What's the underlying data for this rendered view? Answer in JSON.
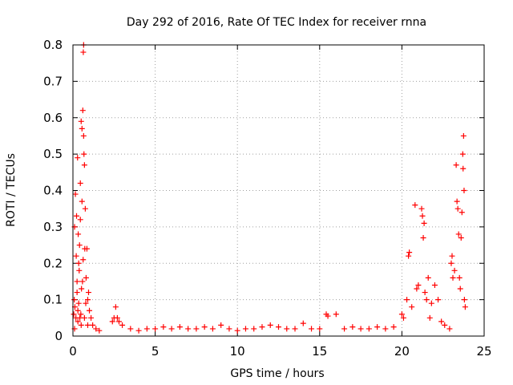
{
  "chart_data": {
    "type": "scatter",
    "title": "Day 292 of 2016, Rate Of TEC Index for receiver rnna",
    "xlabel": "GPS time / hours",
    "ylabel": "ROTI / TECUs",
    "xlim": [
      0,
      25
    ],
    "ylim": [
      0,
      0.8
    ],
    "xticks": [
      0,
      5,
      10,
      15,
      20,
      25
    ],
    "yticks": [
      0,
      0.1,
      0.2,
      0.3,
      0.4,
      0.5,
      0.6,
      0.7,
      0.8
    ],
    "grid": true,
    "marker": "+",
    "color": "#ff0000",
    "series": [
      {
        "points": [
          [
            0.05,
            0.06
          ],
          [
            0.08,
            0.1
          ],
          [
            0.1,
            0.3
          ],
          [
            0.12,
            0.08
          ],
          [
            0.15,
            0.39
          ],
          [
            0.18,
            0.05
          ],
          [
            0.2,
            0.22
          ],
          [
            0.22,
            0.33
          ],
          [
            0.25,
            0.12
          ],
          [
            0.28,
            0.49
          ],
          [
            0.3,
            0.07
          ],
          [
            0.32,
            0.28
          ],
          [
            0.35,
            0.09
          ],
          [
            0.38,
            0.18
          ],
          [
            0.4,
            0.25
          ],
          [
            0.42,
            0.05
          ],
          [
            0.45,
            0.32
          ],
          [
            0.48,
            0.06
          ],
          [
            0.5,
            0.59
          ],
          [
            0.52,
            0.13
          ],
          [
            0.55,
            0.57
          ],
          [
            0.58,
            0.15
          ],
          [
            0.6,
            0.62
          ],
          [
            0.62,
            0.21
          ],
          [
            0.63,
            0.78
          ],
          [
            0.65,
            0.8
          ],
          [
            0.67,
            0.5
          ],
          [
            0.7,
            0.47
          ],
          [
            0.72,
            0.24
          ],
          [
            0.75,
            0.35
          ],
          [
            0.78,
            0.09
          ],
          [
            0.8,
            0.16
          ],
          [
            0.85,
            0.24
          ],
          [
            0.9,
            0.1
          ],
          [
            0.95,
            0.12
          ],
          [
            1.0,
            0.07
          ],
          [
            1.1,
            0.05
          ],
          [
            1.2,
            0.03
          ],
          [
            1.4,
            0.02
          ],
          [
            1.6,
            0.015
          ],
          [
            0.1,
            0.02
          ],
          [
            0.3,
            0.04
          ],
          [
            0.5,
            0.03
          ],
          [
            0.7,
            0.05
          ],
          [
            0.9,
            0.03
          ],
          [
            0.45,
            0.42
          ],
          [
            0.55,
            0.37
          ],
          [
            0.65,
            0.55
          ],
          [
            0.35,
            0.2
          ],
          [
            0.25,
            0.15
          ],
          [
            2.4,
            0.04
          ],
          [
            2.5,
            0.05
          ],
          [
            2.6,
            0.08
          ],
          [
            2.7,
            0.05
          ],
          [
            2.8,
            0.04
          ],
          [
            3.0,
            0.03
          ],
          [
            3.5,
            0.02
          ],
          [
            4.0,
            0.015
          ],
          [
            4.5,
            0.02
          ],
          [
            5.0,
            0.02
          ],
          [
            5.5,
            0.025
          ],
          [
            6.0,
            0.02
          ],
          [
            6.5,
            0.025
          ],
          [
            7.0,
            0.02
          ],
          [
            7.5,
            0.02
          ],
          [
            8.0,
            0.025
          ],
          [
            8.5,
            0.02
          ],
          [
            9.0,
            0.03
          ],
          [
            9.5,
            0.02
          ],
          [
            10.0,
            0.015
          ],
          [
            10.5,
            0.02
          ],
          [
            11.0,
            0.02
          ],
          [
            11.5,
            0.025
          ],
          [
            12.0,
            0.03
          ],
          [
            12.5,
            0.025
          ],
          [
            13.0,
            0.02
          ],
          [
            13.5,
            0.02
          ],
          [
            14.0,
            0.035
          ],
          [
            14.5,
            0.02
          ],
          [
            15.0,
            0.02
          ],
          [
            15.4,
            0.06
          ],
          [
            15.5,
            0.055
          ],
          [
            16.0,
            0.06
          ],
          [
            16.5,
            0.02
          ],
          [
            17.0,
            0.025
          ],
          [
            17.5,
            0.02
          ],
          [
            18.0,
            0.02
          ],
          [
            18.5,
            0.025
          ],
          [
            19.0,
            0.02
          ],
          [
            19.5,
            0.025
          ],
          [
            20.0,
            0.06
          ],
          [
            20.1,
            0.05
          ],
          [
            20.3,
            0.1
          ],
          [
            20.4,
            0.22
          ],
          [
            20.45,
            0.23
          ],
          [
            20.6,
            0.08
          ],
          [
            20.8,
            0.36
          ],
          [
            20.9,
            0.13
          ],
          [
            21.0,
            0.14
          ],
          [
            21.2,
            0.35
          ],
          [
            21.25,
            0.33
          ],
          [
            21.3,
            0.27
          ],
          [
            21.35,
            0.31
          ],
          [
            21.4,
            0.12
          ],
          [
            21.5,
            0.1
          ],
          [
            21.6,
            0.16
          ],
          [
            21.7,
            0.05
          ],
          [
            21.8,
            0.09
          ],
          [
            22.0,
            0.14
          ],
          [
            22.2,
            0.1
          ],
          [
            22.4,
            0.04
          ],
          [
            22.6,
            0.03
          ],
          [
            22.9,
            0.02
          ],
          [
            23.0,
            0.2
          ],
          [
            23.05,
            0.22
          ],
          [
            23.1,
            0.16
          ],
          [
            23.2,
            0.18
          ],
          [
            23.3,
            0.47
          ],
          [
            23.35,
            0.37
          ],
          [
            23.4,
            0.35
          ],
          [
            23.45,
            0.28
          ],
          [
            23.5,
            0.16
          ],
          [
            23.55,
            0.13
          ],
          [
            23.6,
            0.27
          ],
          [
            23.65,
            0.34
          ],
          [
            23.7,
            0.5
          ],
          [
            23.72,
            0.46
          ],
          [
            23.75,
            0.55
          ],
          [
            23.78,
            0.4
          ],
          [
            23.8,
            0.1
          ],
          [
            23.85,
            0.08
          ]
        ]
      }
    ]
  }
}
